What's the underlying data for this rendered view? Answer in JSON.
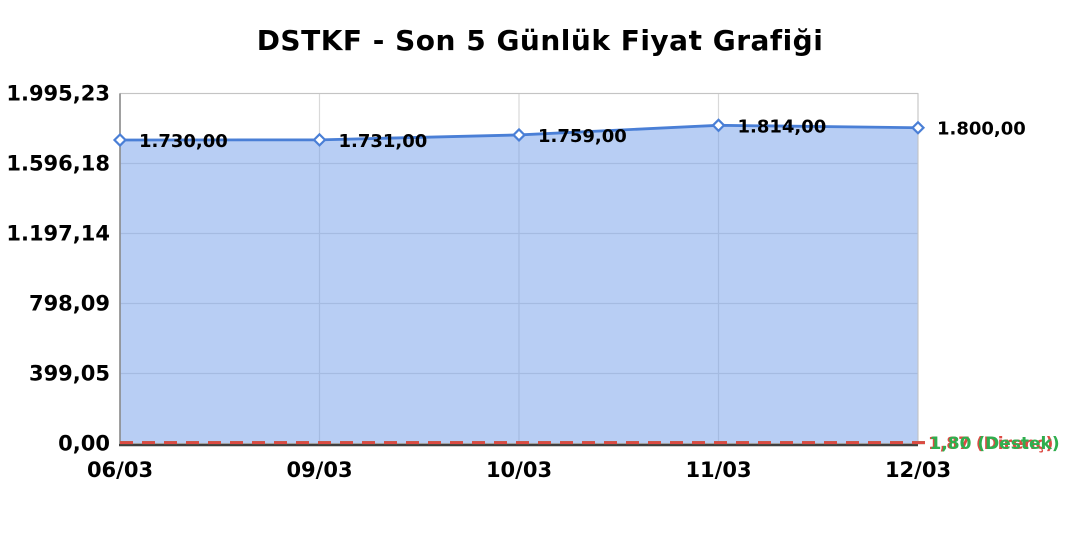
{
  "title": "DSTKF - Son 5 Günlük Fiyat Grafiği",
  "chart_data": {
    "type": "area",
    "title": "DSTKF - Son 5 Günlük Fiyat Grafiği",
    "x_labels": [
      "06/03",
      "09/03",
      "10/03",
      "11/03",
      "12/03"
    ],
    "values": [
      1730,
      1731,
      1759,
      1814,
      1800
    ],
    "point_labels": [
      "1.730,00",
      "1.731,00",
      "1.759,00",
      "1.814,00",
      "1.800,00"
    ],
    "y_ticks": [
      {
        "value": 0,
        "label": "0,00"
      },
      {
        "value": 399.05,
        "label": "399,05"
      },
      {
        "value": 798.09,
        "label": "798,09"
      },
      {
        "value": 1197.14,
        "label": "1.197,14"
      },
      {
        "value": 1596.18,
        "label": "1.596,18"
      },
      {
        "value": 1995.23,
        "label": "1.995,23"
      }
    ],
    "ylim": [
      0,
      1995.23
    ],
    "grid": true,
    "legend": "none",
    "annotations": [
      {
        "id": "resistance",
        "label": "1,87 (Direnç)",
        "value": 1.87,
        "color": "#dd4a43"
      },
      {
        "id": "support",
        "label": "1,80 (Destek)",
        "value": 1.8,
        "color": "#2fae4e"
      }
    ],
    "colors": {
      "line": "#4a7fd6",
      "fill": "#719de9",
      "marker_fill": "#ffffff",
      "grid": "#d9d9d9",
      "border": "#c4c4c4",
      "spine": "#8a8a8a",
      "axis": "#3f3f3f",
      "text": "#000000"
    }
  }
}
